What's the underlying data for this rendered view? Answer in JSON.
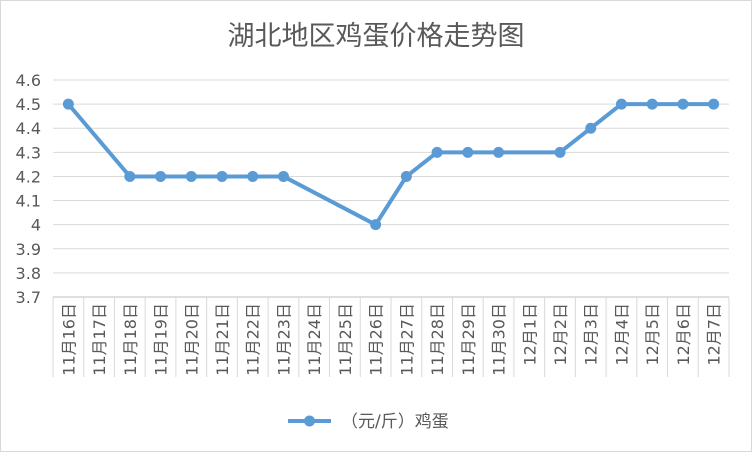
{
  "chart_data": {
    "type": "line",
    "title": "湖北地区鸡蛋价格走势图",
    "xlabel": "",
    "ylabel": "",
    "ylim": [
      3.7,
      4.6
    ],
    "ytick_step": 0.1,
    "yticks": [
      "3.7",
      "3.8",
      "3.9",
      "4",
      "4.1",
      "4.2",
      "4.3",
      "4.4",
      "4.5",
      "4.6"
    ],
    "grid": true,
    "legend": "bottom",
    "categories": [
      "11月16日",
      "11月17日",
      "11月18日",
      "11月19日",
      "11月20日",
      "11月21日",
      "11月22日",
      "11月23日",
      "11月24日",
      "11月25日",
      "11月26日",
      "11月27日",
      "11月28日",
      "11月29日",
      "11月30日",
      "12月1日",
      "12月2日",
      "12月3日",
      "12月4日",
      "12月5日",
      "12月6日",
      "12月7日"
    ],
    "series": [
      {
        "name": "（元/斤）鸡蛋",
        "color": "#5b9bd5",
        "values": [
          4.5,
          null,
          4.2,
          4.2,
          4.2,
          4.2,
          4.2,
          4.2,
          null,
          null,
          4.0,
          4.2,
          4.3,
          4.3,
          4.3,
          null,
          4.3,
          4.4,
          4.5,
          4.5,
          4.5,
          4.5
        ]
      }
    ]
  }
}
